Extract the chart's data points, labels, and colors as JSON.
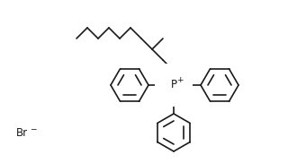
{
  "bg_color": "#ffffff",
  "line_color": "#1a1a1a",
  "line_width": 1.2,
  "text_color": "#1a1a1a",
  "br_label": "Br",
  "br_superscript": "−",
  "p_label": "P",
  "p_superscript": "+",
  "figsize": [
    3.2,
    1.82
  ],
  "dpi": 100
}
